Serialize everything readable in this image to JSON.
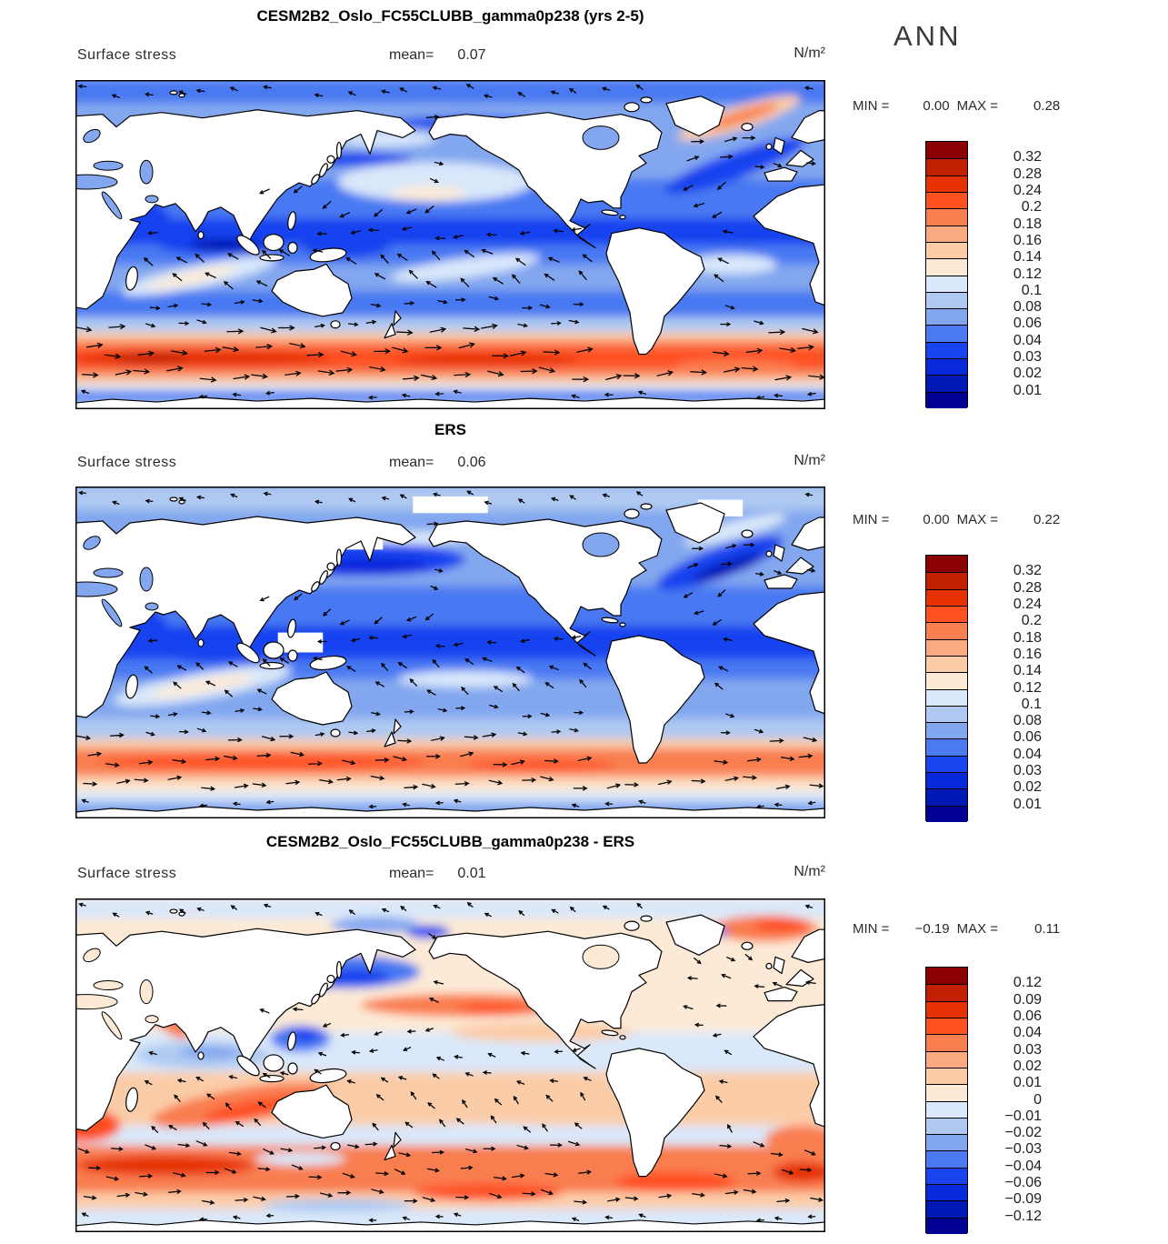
{
  "ann_label": "ANN",
  "labels": {
    "field": "Surface stress",
    "mean": "mean=",
    "units": "N/m²",
    "min": "MIN = ",
    "max": "MAX = "
  },
  "panels": [
    {
      "title": "CESM2B2_Oslo_FC55CLUBB_gamma0p238 (yrs 2-5)",
      "mean": "0.07",
      "min": "0.00",
      "max": "0.28",
      "colorbar_labels": [
        "0.32",
        "0.28",
        "0.24",
        "0.2",
        "0.18",
        "0.16",
        "0.14",
        "0.12",
        "0.1",
        "0.08",
        "0.06",
        "0.04",
        "0.03",
        "0.02",
        "0.01"
      ]
    },
    {
      "title": "ERS",
      "mean": "0.06",
      "min": "0.00",
      "max": "0.22",
      "colorbar_labels": [
        "0.32",
        "0.28",
        "0.24",
        "0.2",
        "0.18",
        "0.16",
        "0.14",
        "0.12",
        "0.1",
        "0.08",
        "0.06",
        "0.04",
        "0.03",
        "0.02",
        "0.01"
      ]
    },
    {
      "title": "CESM2B2_Oslo_FC55CLUBB_gamma0p238 - ERS",
      "mean": "0.01",
      "min": "−0.19",
      "max": "0.11",
      "colorbar_labels": [
        "0.12",
        "0.09",
        "0.06",
        "0.04",
        "0.03",
        "0.02",
        "0.01",
        "0",
        "−0.01",
        "−0.02",
        "−0.03",
        "−0.04",
        "−0.06",
        "−0.09",
        "−0.12"
      ]
    }
  ],
  "chart_data": {
    "type": "heatmap",
    "subtype": "global map, filled contours with wind-stress vector arrows",
    "season": "ANN",
    "variable": "Surface stress",
    "units": "N/m²",
    "palette_top_to_bottom": [
      "#8B0000",
      "#C22000",
      "#E63200",
      "#FF5020",
      "#F97E50",
      "#FAAA80",
      "#FBCCA8",
      "#FDEAD6",
      "#D9E8FA",
      "#AFC9F1",
      "#83A7EF",
      "#4A79F2",
      "#1843EF",
      "#0828DB",
      "#0019B4",
      "#000092"
    ],
    "panels": [
      {
        "name": "CESM2B2_Oslo_FC55CLUBB_gamma0p238 (yrs 2-5)",
        "mean": 0.07,
        "min": 0.0,
        "max": 0.28,
        "levels": [
          0.01,
          0.02,
          0.03,
          0.04,
          0.06,
          0.08,
          0.1,
          0.12,
          0.14,
          0.16,
          0.18,
          0.2,
          0.24,
          0.28,
          0.32
        ],
        "field": {
          "base": "#83A7EF",
          "bands": [
            [
              0.0,
              0.07,
              "#4A79F2"
            ],
            [
              0.3,
              0.56,
              "#4A79F2"
            ],
            [
              0.42,
              0.5,
              "#1843EF"
            ],
            [
              0.64,
              0.72,
              "#4A79F2"
            ],
            [
              0.72,
              0.765,
              "#AFC9F1"
            ],
            [
              0.765,
              0.79,
              "#FBCCA8"
            ],
            [
              0.79,
              0.815,
              "#F97E50"
            ],
            [
              0.815,
              0.875,
              "#FF5020"
            ],
            [
              0.875,
              0.9,
              "#F97E50"
            ],
            [
              0.9,
              0.925,
              "#FBCCA8"
            ],
            [
              0.925,
              0.945,
              "#D9E8FA"
            ],
            [
              0.945,
              0.975,
              "#4A79F2"
            ],
            [
              0.975,
              1.0,
              "#AFC9F1"
            ]
          ],
          "patches": [
            [
              0.48,
              0.31,
              0.13,
              0.06,
              0,
              "#D9E8FA"
            ],
            [
              0.47,
              0.345,
              0.05,
              0.022,
              0,
              "#FDEAD6"
            ],
            [
              0.38,
              0.175,
              0.1,
              0.03,
              0,
              "#AFC9F1"
            ],
            [
              0.42,
              0.18,
              0.06,
              0.02,
              0,
              "#D9E8FA"
            ],
            [
              0.33,
              0.24,
              0.12,
              0.022,
              0,
              "#1843EF"
            ],
            [
              0.52,
              0.13,
              0.1,
              0.02,
              0,
              "#1843EF"
            ],
            [
              0.885,
              0.115,
              0.085,
              0.035,
              -18,
              "#FBCCA8"
            ],
            [
              0.89,
              0.11,
              0.05,
              0.018,
              -18,
              "#F97E50"
            ],
            [
              0.88,
              0.26,
              0.1,
              0.04,
              -20,
              "#1843EF"
            ],
            [
              0.1,
              0.42,
              0.035,
              0.05,
              45,
              "#1843EF"
            ],
            [
              0.19,
              0.5,
              0.08,
              0.03,
              0,
              "#1843EF"
            ],
            [
              0.2,
              0.5,
              0.05,
              0.018,
              0,
              "#0019B4"
            ],
            [
              0.36,
              0.5,
              0.06,
              0.04,
              0,
              "#1843EF"
            ],
            [
              0.165,
              0.595,
              0.105,
              0.035,
              -12,
              "#D9E8FA"
            ],
            [
              0.155,
              0.6,
              0.06,
              0.018,
              -12,
              "#FDEAD6"
            ],
            [
              0.52,
              0.57,
              0.1,
              0.03,
              -8,
              "#D9E8FA"
            ],
            [
              0.875,
              0.56,
              0.06,
              0.03,
              0,
              "#D9E8FA"
            ],
            [
              0.17,
              0.845,
              0.17,
              0.025,
              0,
              "#E63200"
            ],
            [
              0.55,
              0.85,
              0.12,
              0.02,
              0,
              "#E63200"
            ],
            [
              0.1,
              0.845,
              0.05,
              0.015,
              0,
              "#C22000"
            ],
            [
              0.88,
              0.87,
              0.08,
              0.02,
              0,
              "#F97E50"
            ]
          ],
          "gaps": [],
          "flow": [
            [
              0.0,
              0.085,
              200,
              8
            ],
            [
              0.085,
              0.245,
              350,
              13
            ],
            [
              0.245,
              0.315,
              15,
              9
            ],
            [
              0.315,
              0.42,
              150,
              11
            ],
            [
              0.42,
              0.52,
              180,
              10
            ],
            [
              0.52,
              0.63,
              215,
              12
            ],
            [
              0.63,
              0.75,
              5,
              10
            ],
            [
              0.75,
              0.93,
              0,
              17
            ],
            [
              0.93,
              1.0,
              185,
              8
            ]
          ]
        }
      },
      {
        "name": "ERS",
        "mean": 0.06,
        "min": 0.0,
        "max": 0.22,
        "levels": [
          0.01,
          0.02,
          0.03,
          0.04,
          0.06,
          0.08,
          0.1,
          0.12,
          0.14,
          0.16,
          0.18,
          0.2,
          0.24,
          0.28,
          0.32
        ],
        "field": {
          "base": "#83A7EF",
          "bands": [
            [
              0.0,
              0.07,
              "#AFC9F1"
            ],
            [
              0.3,
              0.58,
              "#4A79F2"
            ],
            [
              0.42,
              0.52,
              "#1843EF"
            ],
            [
              0.7,
              0.76,
              "#AFC9F1"
            ],
            [
              0.76,
              0.79,
              "#FBCCA8"
            ],
            [
              0.79,
              0.87,
              "#F97E50"
            ],
            [
              0.87,
              0.895,
              "#FBCCA8"
            ],
            [
              0.895,
              0.92,
              "#FDEAD6"
            ],
            [
              0.92,
              0.95,
              "#D9E8FA"
            ],
            [
              0.95,
              1.0,
              "#83A7EF"
            ]
          ],
          "patches": [
            [
              0.38,
              0.22,
              0.14,
              0.05,
              0,
              "#1843EF"
            ],
            [
              0.4,
              0.24,
              0.07,
              0.025,
              0,
              "#0828DB"
            ],
            [
              0.45,
              0.155,
              0.08,
              0.02,
              0,
              "#D9E8FA"
            ],
            [
              0.86,
              0.23,
              0.09,
              0.045,
              -20,
              "#1843EF"
            ],
            [
              0.87,
              0.245,
              0.05,
              0.02,
              -20,
              "#0019B4"
            ],
            [
              0.88,
              0.13,
              0.07,
              0.025,
              -15,
              "#D9E8FA"
            ],
            [
              0.19,
              0.5,
              0.08,
              0.03,
              0,
              "#1843EF"
            ],
            [
              0.1,
              0.42,
              0.03,
              0.045,
              45,
              "#1843EF"
            ],
            [
              0.17,
              0.6,
              0.12,
              0.04,
              -10,
              "#D9E8FA"
            ],
            [
              0.17,
              0.6,
              0.07,
              0.02,
              -10,
              "#FDEAD6"
            ],
            [
              0.52,
              0.58,
              0.09,
              0.025,
              0,
              "#D9E8FA"
            ],
            [
              0.25,
              0.83,
              0.22,
              0.02,
              0,
              "#FF5020"
            ],
            [
              0.62,
              0.84,
              0.1,
              0.015,
              0,
              "#FF5020"
            ]
          ],
          "gaps": [
            [
              0.33,
              0.12,
              0.08,
              0.07
            ],
            [
              0.45,
              0.03,
              0.1,
              0.05
            ],
            [
              0.83,
              0.04,
              0.06,
              0.05
            ],
            [
              0.27,
              0.44,
              0.06,
              0.06
            ]
          ],
          "flow": [
            [
              0.0,
              0.085,
              200,
              7
            ],
            [
              0.085,
              0.245,
              350,
              11
            ],
            [
              0.245,
              0.315,
              15,
              8
            ],
            [
              0.315,
              0.42,
              150,
              10
            ],
            [
              0.42,
              0.52,
              180,
              9
            ],
            [
              0.52,
              0.63,
              215,
              10
            ],
            [
              0.63,
              0.75,
              5,
              9
            ],
            [
              0.75,
              0.93,
              0,
              14
            ],
            [
              0.93,
              1.0,
              185,
              7
            ]
          ]
        }
      },
      {
        "name": "CESM2B2_Oslo_FC55CLUBB_gamma0p238 - ERS",
        "mean": 0.01,
        "min": -0.19,
        "max": 0.11,
        "levels": [
          -0.12,
          -0.09,
          -0.06,
          -0.04,
          -0.03,
          -0.02,
          -0.01,
          0,
          0.01,
          0.02,
          0.03,
          0.04,
          0.06,
          0.09,
          0.12
        ],
        "field": {
          "base": "#FDEAD6",
          "bands": [
            [
              0.0,
              0.06,
              "#D9E8FA"
            ],
            [
              0.4,
              0.52,
              "#D9E8FA"
            ],
            [
              0.52,
              0.68,
              "#FBCCA8"
            ],
            [
              0.68,
              0.74,
              "#D9E8FA"
            ],
            [
              0.74,
              0.88,
              "#F97E50"
            ],
            [
              0.88,
              0.93,
              "#FBCCA8"
            ],
            [
              0.93,
              1.0,
              "#D9E8FA"
            ]
          ],
          "patches": [
            [
              0.36,
              0.22,
              0.1,
              0.05,
              0,
              "#4A79F2"
            ],
            [
              0.37,
              0.235,
              0.05,
              0.025,
              0,
              "#1843EF"
            ],
            [
              0.47,
              0.1,
              0.03,
              0.02,
              0,
              "#1843EF"
            ],
            [
              0.4,
              0.08,
              0.06,
              0.025,
              0,
              "#83A7EF"
            ],
            [
              0.52,
              0.32,
              0.14,
              0.035,
              0,
              "#F97E50"
            ],
            [
              0.56,
              0.33,
              0.05,
              0.015,
              0,
              "#FF5020"
            ],
            [
              0.62,
              0.4,
              0.12,
              0.03,
              0,
              "#FBCCA8"
            ],
            [
              0.92,
              0.09,
              0.07,
              0.04,
              0,
              "#F97E50"
            ],
            [
              0.94,
              0.08,
              0.035,
              0.02,
              0,
              "#FF5020"
            ],
            [
              0.84,
              0.1,
              0.03,
              0.02,
              0,
              "#4A79F2"
            ],
            [
              0.17,
              0.47,
              0.09,
              0.04,
              0,
              "#AFC9F1"
            ],
            [
              0.18,
              0.46,
              0.04,
              0.02,
              0,
              "#83A7EF"
            ],
            [
              0.3,
              0.42,
              0.04,
              0.04,
              0,
              "#4A79F2"
            ],
            [
              0.305,
              0.41,
              0.02,
              0.02,
              0,
              "#1843EF"
            ],
            [
              0.12,
              0.36,
              0.04,
              0.03,
              40,
              "#F97E50"
            ],
            [
              0.22,
              0.62,
              0.12,
              0.05,
              -10,
              "#F97E50"
            ],
            [
              0.24,
              0.63,
              0.07,
              0.025,
              -10,
              "#FF5020"
            ],
            [
              0.01,
              0.68,
              0.05,
              0.05,
              0,
              "#FF5020"
            ],
            [
              0.97,
              0.72,
              0.05,
              0.04,
              0,
              "#F97E50"
            ],
            [
              0.12,
              0.8,
              0.12,
              0.03,
              0,
              "#E63200"
            ],
            [
              0.55,
              0.88,
              0.1,
              0.025,
              0,
              "#FF5020"
            ],
            [
              0.8,
              0.85,
              0.08,
              0.03,
              0,
              "#FF5020"
            ],
            [
              0.97,
              0.82,
              0.04,
              0.03,
              0,
              "#E63200"
            ],
            [
              0.35,
              0.92,
              0.1,
              0.02,
              0,
              "#AFC9F1"
            ],
            [
              0.3,
              0.78,
              0.06,
              0.02,
              0,
              "#D9E8FA"
            ],
            [
              0.55,
              0.7,
              0.12,
              0.025,
              0,
              "#D9E8FA"
            ]
          ],
          "gaps": [],
          "flow": [
            [
              0.0,
              0.1,
              210,
              7
            ],
            [
              0.1,
              0.22,
              30,
              9
            ],
            [
              0.22,
              0.34,
              195,
              10
            ],
            [
              0.34,
              0.46,
              170,
              8
            ],
            [
              0.46,
              0.58,
              200,
              8
            ],
            [
              0.58,
              0.7,
              225,
              9
            ],
            [
              0.7,
              0.82,
              10,
              12
            ],
            [
              0.82,
              0.93,
              5,
              13
            ],
            [
              0.93,
              1.0,
              190,
              7
            ]
          ]
        }
      }
    ]
  }
}
